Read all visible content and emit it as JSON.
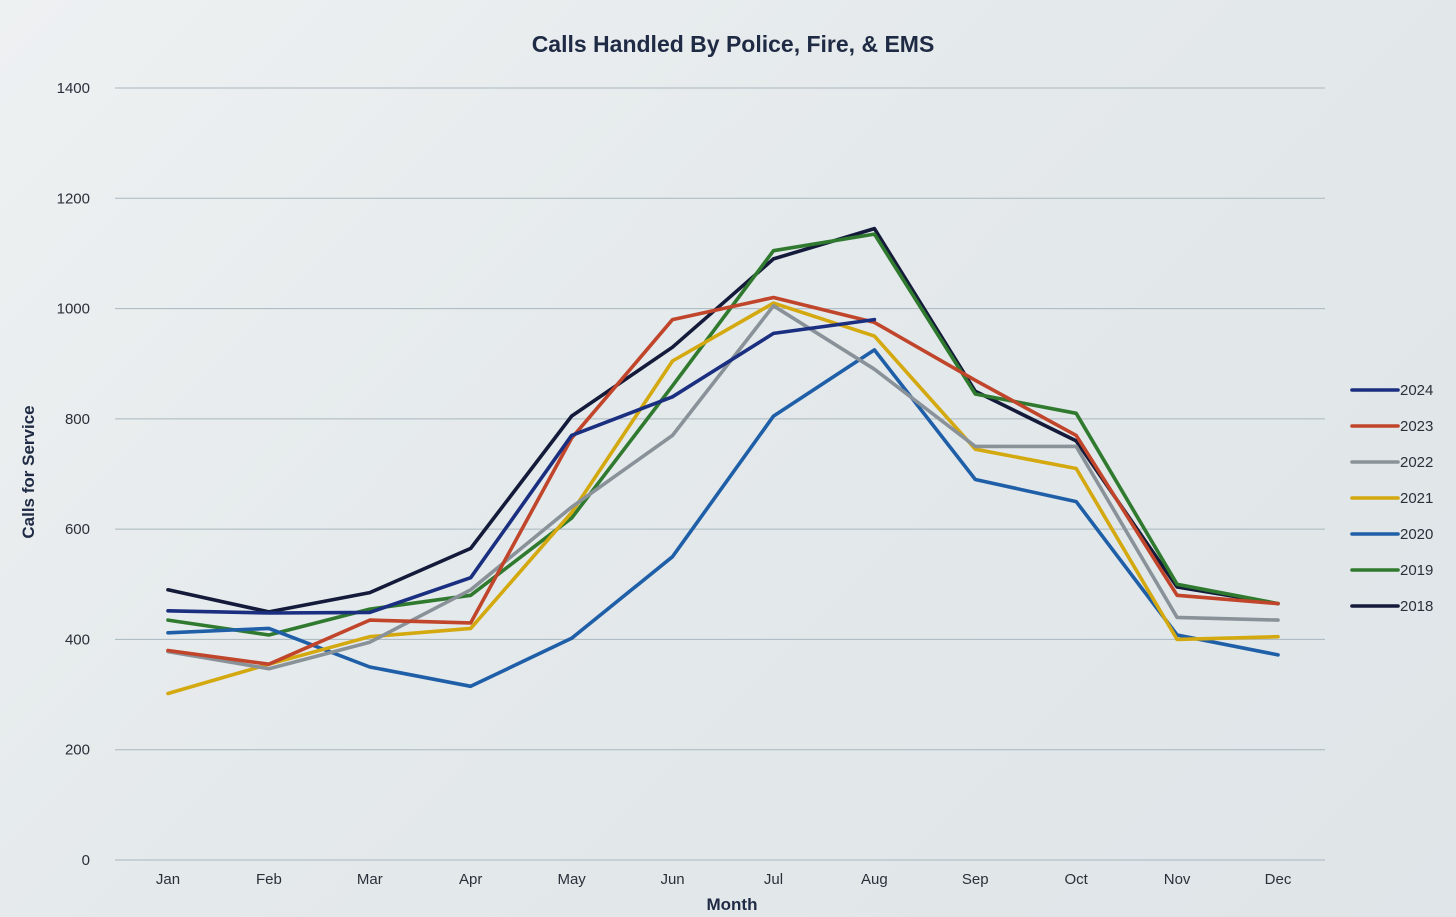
{
  "chart_data": {
    "type": "line",
    "title": "Calls Handled By Police, Fire, & EMS",
    "xlabel": "Month",
    "ylabel": "Calls for Service",
    "ylim": [
      0,
      1400
    ],
    "yticks": [
      "0",
      "200",
      "400",
      "600",
      "800",
      "1000",
      "1200",
      "1400"
    ],
    "categories": [
      "Jan",
      "Feb",
      "Mar",
      "Apr",
      "May",
      "Jun",
      "Jul",
      "Aug",
      "Sep",
      "Oct",
      "Nov",
      "Dec"
    ],
    "grid": true,
    "legend_position": "right",
    "series": [
      {
        "name": "2024",
        "color": "#1b2f80",
        "values": [
          452,
          448,
          449,
          512,
          770,
          840,
          955,
          980,
          null,
          null,
          null,
          null
        ]
      },
      {
        "name": "2023",
        "color": "#c0452a",
        "values": [
          380,
          355,
          435,
          430,
          765,
          980,
          1020,
          975,
          870,
          770,
          480,
          465
        ]
      },
      {
        "name": "2022",
        "color": "#8a9299",
        "values": [
          378,
          347,
          395,
          490,
          640,
          770,
          1005,
          890,
          750,
          750,
          440,
          435
        ]
      },
      {
        "name": "2021",
        "color": "#d4a90f",
        "values": [
          302,
          355,
          405,
          420,
          630,
          905,
          1010,
          950,
          745,
          710,
          400,
          405
        ]
      },
      {
        "name": "2020",
        "color": "#1f5fa8",
        "values": [
          412,
          420,
          350,
          315,
          402,
          550,
          805,
          925,
          690,
          650,
          408,
          372
        ]
      },
      {
        "name": "2019",
        "color": "#2f7a2e",
        "values": [
          435,
          408,
          455,
          480,
          620,
          860,
          1105,
          1135,
          845,
          810,
          500,
          465
        ]
      },
      {
        "name": "2018",
        "color": "#141a3a",
        "values": [
          490,
          450,
          485,
          565,
          805,
          930,
          1090,
          1145,
          850,
          760,
          495,
          465
        ]
      }
    ]
  }
}
